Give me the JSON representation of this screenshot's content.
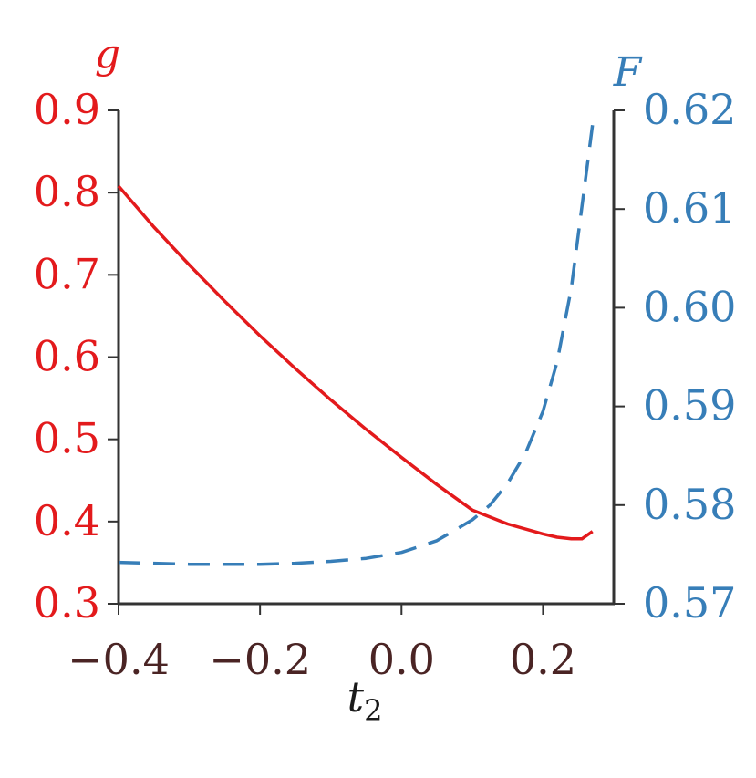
{
  "chart_data": {
    "type": "line",
    "xlabel": "t",
    "xlabel_subscript": "2",
    "ylabel_left": "g",
    "ylabel_right": "F",
    "xlim": [
      -0.4,
      0.3
    ],
    "ylim_left": [
      0.3,
      0.9
    ],
    "ylim_right": [
      0.57,
      0.62
    ],
    "x_ticks": [
      -0.4,
      -0.2,
      0.0,
      0.2
    ],
    "x_tick_labels": [
      "−0.4",
      "−0.2",
      "0.0",
      "0.2"
    ],
    "left_ticks": [
      0.3,
      0.4,
      0.5,
      0.6,
      0.7,
      0.8,
      0.9
    ],
    "left_tick_labels": [
      "0.3",
      "0.4",
      "0.5",
      "0.6",
      "0.7",
      "0.8",
      "0.9"
    ],
    "right_ticks": [
      0.57,
      0.58,
      0.59,
      0.6,
      0.61,
      0.62
    ],
    "right_tick_labels": [
      "0.57",
      "0.58",
      "0.59",
      "0.60",
      "0.61",
      "0.62"
    ],
    "grid": false,
    "colors": {
      "left": "#e31a1c",
      "right": "#377eb8",
      "axis": "#333333",
      "xticks": "#4a2424"
    },
    "series": [
      {
        "axis": "left",
        "style": "solid",
        "color": "#e31a1c",
        "x": [
          -0.4,
          -0.35,
          -0.3,
          -0.25,
          -0.2,
          -0.15,
          -0.1,
          -0.05,
          0.0,
          0.05,
          0.1,
          0.15,
          0.2,
          0.22,
          0.24,
          0.255,
          0.27
        ],
        "y": [
          0.808,
          0.758,
          0.712,
          0.668,
          0.626,
          0.586,
          0.548,
          0.512,
          0.478,
          0.445,
          0.414,
          0.397,
          0.385,
          0.381,
          0.379,
          0.379,
          0.388
        ]
      },
      {
        "axis": "right",
        "style": "dashed",
        "color": "#377eb8",
        "x": [
          -0.4,
          -0.35,
          -0.3,
          -0.25,
          -0.2,
          -0.15,
          -0.1,
          -0.05,
          0.0,
          0.05,
          0.1,
          0.125,
          0.15,
          0.175,
          0.2,
          0.22,
          0.24,
          0.26,
          0.27
        ],
        "y": [
          0.5742,
          0.5741,
          0.574,
          0.574,
          0.574,
          0.5741,
          0.5743,
          0.5746,
          0.5752,
          0.5764,
          0.5785,
          0.58,
          0.5822,
          0.5852,
          0.5895,
          0.5945,
          0.602,
          0.613,
          0.6185
        ]
      }
    ]
  }
}
